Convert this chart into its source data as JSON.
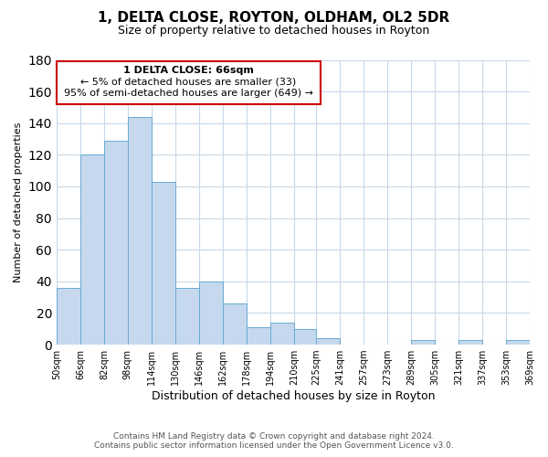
{
  "title": "1, DELTA CLOSE, ROYTON, OLDHAM, OL2 5DR",
  "subtitle": "Size of property relative to detached houses in Royton",
  "xlabel": "Distribution of detached houses by size in Royton",
  "ylabel": "Number of detached properties",
  "bar_color": "#c5d8ee",
  "bar_edge_color": "#6aaad4",
  "background_color": "#ffffff",
  "grid_color": "#c8d8e8",
  "annotation_box_color": "#ffffff",
  "annotation_box_edge": "#cc0000",
  "bins": [
    50,
    66,
    82,
    98,
    114,
    130,
    146,
    162,
    178,
    194,
    210,
    225,
    241,
    257,
    273,
    289,
    305,
    321,
    337,
    353,
    369
  ],
  "values": [
    36,
    120,
    129,
    144,
    103,
    36,
    40,
    26,
    11,
    14,
    10,
    4,
    0,
    0,
    0,
    3,
    0,
    3,
    0,
    3
  ],
  "tick_labels": [
    "50sqm",
    "66sqm",
    "82sqm",
    "98sqm",
    "114sqm",
    "130sqm",
    "146sqm",
    "162sqm",
    "178sqm",
    "194sqm",
    "210sqm",
    "225sqm",
    "241sqm",
    "257sqm",
    "273sqm",
    "289sqm",
    "305sqm",
    "321sqm",
    "337sqm",
    "353sqm",
    "369sqm"
  ],
  "ylim": [
    0,
    180
  ],
  "yticks": [
    0,
    20,
    40,
    60,
    80,
    100,
    120,
    140,
    160,
    180
  ],
  "annotation_line1": "1 DELTA CLOSE: 66sqm",
  "annotation_line2": "← 5% of detached houses are smaller (33)",
  "annotation_line3": "95% of semi-detached houses are larger (649) →",
  "footer_line1": "Contains HM Land Registry data © Crown copyright and database right 2024.",
  "footer_line2": "Contains public sector information licensed under the Open Government Licence v3.0."
}
